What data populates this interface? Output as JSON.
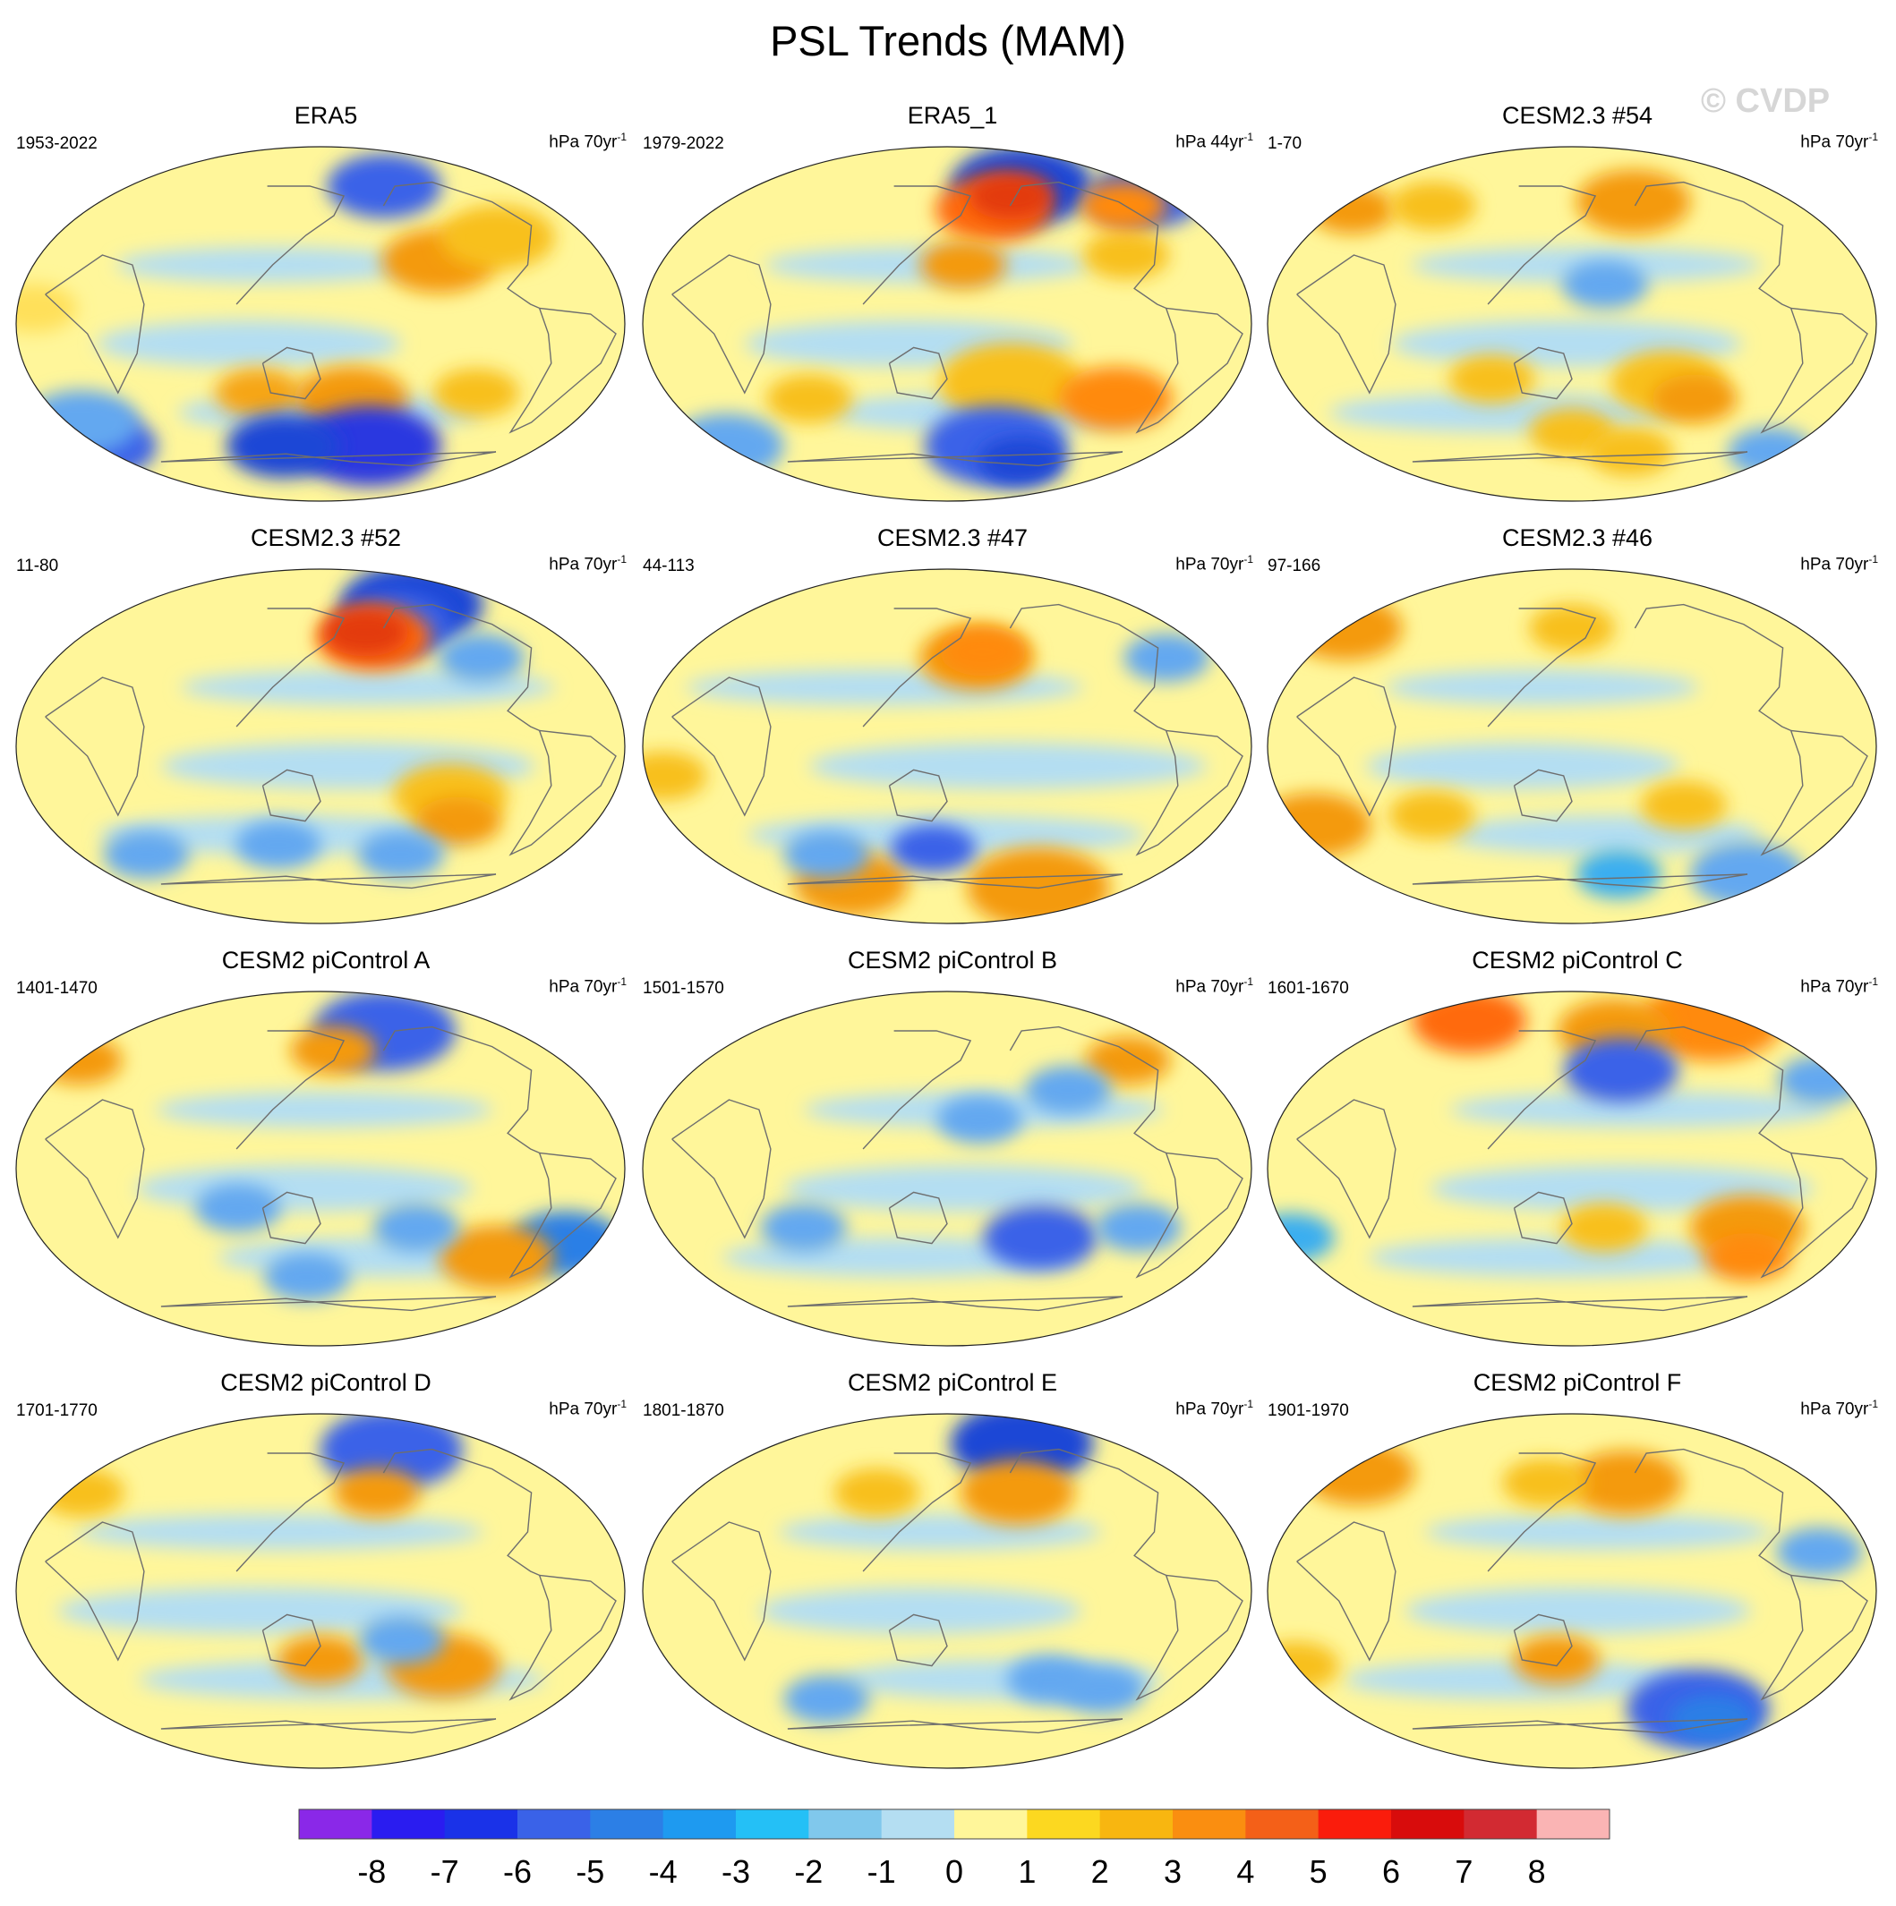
{
  "title": "PSL Trends (MAM)",
  "watermark": "© CVDP",
  "chart_data": {
    "type": "contour-map-grid",
    "projection": "Robinson (Pacific-centered)",
    "variable": "PSL",
    "season": "MAM",
    "panels": [
      {
        "title": "ERA5",
        "years": "1953-2022",
        "units_base": "hPa 70yr",
        "units_exp": "-1",
        "blobs": [
          [
            -135,
            32,
            4,
            "#f49a0a"
          ],
          [
            -90,
            44,
            4,
            "#f8c01a"
          ],
          [
            -20,
            8,
            3,
            "#ffe05a"
          ],
          [
            110,
            -35,
            3,
            "#f6a616"
          ],
          [
            170,
            -38,
            4,
            "#f49a0a"
          ],
          [
            -110,
            -35,
            3,
            "#f8c01a"
          ],
          [
            -150,
            70,
            4,
            "#3a62e8"
          ],
          [
            -170,
            -62,
            5,
            "#2c38e0"
          ],
          [
            -30,
            -62,
            4,
            "#3a62e8"
          ],
          [
            120,
            -62,
            4,
            "#1e46d6"
          ],
          [
            -20,
            -50,
            4,
            "#64a8f0"
          ]
        ]
      },
      {
        "title": "ERA5_1",
        "years": "1979-2022",
        "units_base": "hPa 44yr",
        "units_exp": "-1",
        "blobs": [
          [
            -140,
            70,
            5,
            "#1e46d6"
          ],
          [
            -40,
            65,
            4,
            "#3a62e8"
          ],
          [
            -175,
            58,
            4,
            "#ff6a10"
          ],
          [
            -155,
            65,
            3,
            "#e33a10"
          ],
          [
            -95,
            35,
            3,
            "#f8c01a"
          ],
          [
            -70,
            60,
            3,
            "#ff8a10"
          ],
          [
            160,
            30,
            3,
            "#f49a0a"
          ],
          [
            -170,
            -30,
            5,
            "#f8c01a"
          ],
          [
            -100,
            -38,
            4,
            "#ff8a10"
          ],
          [
            60,
            -38,
            3,
            "#f8c01a"
          ],
          [
            -170,
            -62,
            5,
            "#3a62e8"
          ],
          [
            -140,
            -70,
            3,
            "#1e46d6"
          ],
          [
            -30,
            -62,
            4,
            "#64a8f0"
          ]
        ]
      },
      {
        "title": "CESM2.3 #54",
        "years": "1-70",
        "units_base": "hPa 70yr",
        "units_exp": "-1",
        "blobs": [
          [
            -160,
            62,
            4,
            "#f49a0a"
          ],
          [
            -20,
            58,
            3,
            "#f49a0a"
          ],
          [
            40,
            60,
            3,
            "#f8c01a"
          ],
          [
            -150,
            -30,
            4,
            "#f8c01a"
          ],
          [
            -130,
            -38,
            3,
            "#f49a0a"
          ],
          [
            100,
            -28,
            3,
            "#f8c01a"
          ],
          [
            150,
            -55,
            3,
            "#f8c01a"
          ],
          [
            -160,
            -65,
            3,
            "#f8c01a"
          ],
          [
            -40,
            -65,
            3,
            "#64a8f0"
          ],
          [
            170,
            20,
            3,
            "#64a8f0"
          ]
        ]
      },
      {
        "title": "CESM2.3 #52",
        "years": "11-80",
        "units_base": "hPa 70yr",
        "units_exp": "-1",
        "blobs": [
          [
            -120,
            72,
            5,
            "#1e46d6"
          ],
          [
            -150,
            62,
            4,
            "#3a62e8"
          ],
          [
            -170,
            55,
            4,
            "#ff6a10"
          ],
          [
            -175,
            58,
            3,
            "#e33a10"
          ],
          [
            -130,
            -25,
            4,
            "#f8c01a"
          ],
          [
            -120,
            -38,
            3,
            "#f49a0a"
          ],
          [
            -150,
            -55,
            3,
            "#64a8f0"
          ],
          [
            20,
            -55,
            3,
            "#64a8f0"
          ],
          [
            120,
            -50,
            3,
            "#64a8f0"
          ],
          [
            -100,
            45,
            3,
            "#64a8f0"
          ]
        ]
      },
      {
        "title": "CESM2.3 #47",
        "years": "44-113",
        "units_base": "hPa 70yr",
        "units_exp": "-1",
        "blobs": [
          [
            170,
            45,
            4,
            "#f49a0a"
          ],
          [
            175,
            48,
            3,
            "#ff8a10"
          ],
          [
            -120,
            -72,
            5,
            "#f49a0a"
          ],
          [
            60,
            -70,
            4,
            "#f49a0a"
          ],
          [
            -20,
            -15,
            3,
            "#f8c01a"
          ],
          [
            140,
            -52,
            3,
            "#3a62e8"
          ],
          [
            60,
            -55,
            3,
            "#64a8f0"
          ],
          [
            -60,
            45,
            3,
            "#64a8f0"
          ]
        ]
      },
      {
        "title": "CESM2.3 #46",
        "years": "97-166",
        "units_base": "hPa 70yr",
        "units_exp": "-1",
        "blobs": [
          [
            -30,
            60,
            4,
            "#f49a0a"
          ],
          [
            60,
            -35,
            3,
            "#f8c01a"
          ],
          [
            -140,
            -30,
            3,
            "#f8c01a"
          ],
          [
            -20,
            -40,
            4,
            "#f49a0a"
          ],
          [
            -60,
            -65,
            4,
            "#64a8f0"
          ],
          [
            -170,
            -65,
            3,
            "#3aaef0"
          ],
          [
            150,
            60,
            3,
            "#f8c01a"
          ]
        ]
      },
      {
        "title": "CESM2 piControl A",
        "years": "1401-1470",
        "units_base": "hPa 70yr",
        "units_exp": "-1",
        "blobs": [
          [
            -150,
            70,
            5,
            "#3a62e8"
          ],
          [
            160,
            60,
            3,
            "#f49a0a"
          ],
          [
            -30,
            55,
            3,
            "#f49a0a"
          ],
          [
            -50,
            -38,
            4,
            "#2c7fe6"
          ],
          [
            -90,
            -45,
            4,
            "#f49a0a"
          ],
          [
            140,
            -55,
            3,
            "#64a8f0"
          ],
          [
            -150,
            -30,
            3,
            "#64a8f0"
          ],
          [
            100,
            -20,
            3,
            "#64a8f0"
          ]
        ]
      },
      {
        "title": "CESM2 piControl B",
        "years": "1501-1570",
        "units_base": "hPa 70yr",
        "units_exp": "-1",
        "blobs": [
          [
            -75,
            55,
            3,
            "#f49a0a"
          ],
          [
            -150,
            -35,
            4,
            "#3a62e8"
          ],
          [
            -90,
            -30,
            3,
            "#64a8f0"
          ],
          [
            -130,
            40,
            3,
            "#64a8f0"
          ],
          [
            60,
            -30,
            3,
            "#64a8f0"
          ],
          [
            170,
            25,
            3,
            "#64a8f0"
          ]
        ]
      },
      {
        "title": "CESM2 piControl C",
        "years": "1601-1670",
        "units_base": "hPa 70yr",
        "units_exp": "-1",
        "blobs": [
          [
            -60,
            75,
            5,
            "#ff8a10"
          ],
          [
            40,
            75,
            4,
            "#ff6a10"
          ],
          [
            -170,
            70,
            4,
            "#f49a0a"
          ],
          [
            -175,
            50,
            4,
            "#3a62e8"
          ],
          [
            -40,
            45,
            3,
            "#64a8f0"
          ],
          [
            -100,
            -30,
            4,
            "#f49a0a"
          ],
          [
            -90,
            -45,
            3,
            "#ff8a10"
          ],
          [
            170,
            -30,
            3,
            "#f8c01a"
          ],
          [
            -30,
            -35,
            3,
            "#3aaef0"
          ]
        ]
      },
      {
        "title": "CESM2 piControl D",
        "years": "1701-1770",
        "units_base": "hPa 70yr",
        "units_exp": "-1",
        "blobs": [
          [
            -140,
            72,
            5,
            "#3a62e8"
          ],
          [
            -170,
            50,
            3,
            "#f49a0a"
          ],
          [
            -130,
            -38,
            4,
            "#f49a0a"
          ],
          [
            150,
            -35,
            3,
            "#f49a0a"
          ],
          [
            -160,
            -25,
            3,
            "#64a8f0"
          ],
          [
            -20,
            50,
            3,
            "#f8c01a"
          ]
        ]
      },
      {
        "title": "CESM2 piControl E",
        "years": "1801-1870",
        "units_base": "hPa 70yr",
        "units_exp": "-1",
        "blobs": [
          [
            -130,
            75,
            5,
            "#1e46d6"
          ],
          [
            -160,
            50,
            4,
            "#f49a0a"
          ],
          [
            100,
            50,
            3,
            "#f8c01a"
          ],
          [
            -140,
            -45,
            3,
            "#64a8f0"
          ],
          [
            -100,
            -50,
            3,
            "#64a8f0"
          ],
          [
            60,
            -55,
            3,
            "#64a8f0"
          ]
        ]
      },
      {
        "title": "CESM2 piControl F",
        "years": "1901-1970",
        "units_base": "hPa 70yr",
        "units_exp": "-1",
        "blobs": [
          [
            -170,
            55,
            4,
            "#f49a0a"
          ],
          [
            -20,
            60,
            4,
            "#f49a0a"
          ],
          [
            130,
            55,
            3,
            "#f8c01a"
          ],
          [
            -110,
            -60,
            5,
            "#3a62e8"
          ],
          [
            -90,
            -65,
            3,
            "#2c7fe6"
          ],
          [
            140,
            -35,
            3,
            "#f49a0a"
          ],
          [
            -30,
            -38,
            3,
            "#f8c01a"
          ],
          [
            -60,
            20,
            3,
            "#64a8f0"
          ]
        ]
      }
    ],
    "colorbar": {
      "colors": [
        "#8a28e8",
        "#2a1cf0",
        "#1a32e8",
        "#3a62e8",
        "#2c7fe6",
        "#1e9af0",
        "#24c0f6",
        "#80c8ec",
        "#b4def2",
        "#fff69a",
        "#fcd820",
        "#f8b610",
        "#fa8e10",
        "#f46018",
        "#fa1c0c",
        "#d80c0c",
        "#d22a32",
        "#fab4b4"
      ],
      "tick_labels": [
        "-8",
        "-7",
        "-6",
        "-5",
        "-4",
        "-3",
        "-2",
        "-1",
        "0",
        "1",
        "2",
        "3",
        "4",
        "5",
        "6",
        "7",
        "8"
      ]
    }
  }
}
